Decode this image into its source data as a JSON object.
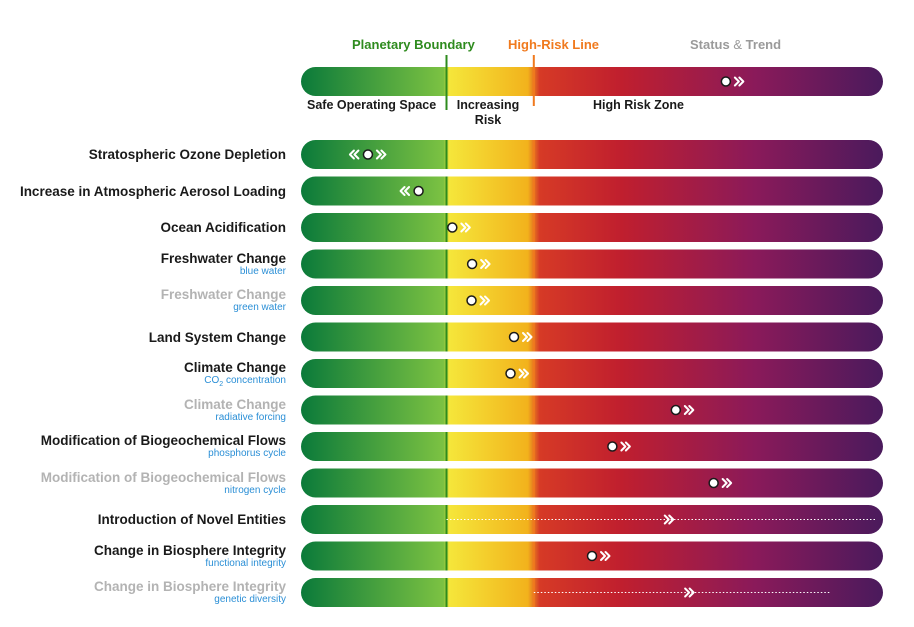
{
  "header": {
    "planetary_boundary": "Planetary Boundary",
    "high_risk_line": "High-Risk Line",
    "status": "Status",
    "amp": "&",
    "trend": "Trend"
  },
  "zones": {
    "safe": "Safe Operating Space",
    "increasing_1": "Increasing",
    "increasing_2": "Risk",
    "high": "High Risk Zone"
  },
  "colors": {
    "boundary_line": "#2e8b1e",
    "high_risk_line": "#f07a1e",
    "gradient": [
      "#0b7a3a",
      "#7cc242",
      "#f5e63a",
      "#f2b21c",
      "#d63a26",
      "#c01f2e",
      "#8a1a5a",
      "#4a1a5c"
    ],
    "subtitle": "#2b8fd6",
    "faded_text": "#b3b3b3"
  },
  "legend_example": {
    "status": 0.73,
    "trend": "worsening"
  },
  "chart_data": {
    "type": "status-bar",
    "scale": "0 = left edge, 1 = right edge; boundary at 0.25, high-risk at 0.40",
    "thresholds": {
      "planetary_boundary": 0.25,
      "high_risk": 0.4
    },
    "rows": [
      {
        "title": "Stratospheric Ozone Depletion",
        "subtitle": "",
        "faded": false,
        "status": 0.115,
        "trend": "improving-both"
      },
      {
        "title": "Increase in Atmospheric Aerosol Loading",
        "subtitle": "",
        "faded": false,
        "status": 0.202,
        "trend": "improving"
      },
      {
        "title": "Ocean Acidification",
        "subtitle": "",
        "faded": false,
        "status": 0.26,
        "trend": "worsening"
      },
      {
        "title": "Freshwater Change",
        "subtitle": "blue water",
        "faded": false,
        "status": 0.294,
        "trend": "worsening"
      },
      {
        "title": "Freshwater Change",
        "subtitle": "green water",
        "faded": true,
        "status": 0.293,
        "trend": "worsening"
      },
      {
        "title": "Land System Change",
        "subtitle": "",
        "faded": false,
        "status": 0.366,
        "trend": "worsening"
      },
      {
        "title": "Climate Change",
        "subtitle": "CO",
        "subtitle_sub": "2",
        "subtitle_rest": " concentration",
        "faded": false,
        "status": 0.36,
        "trend": "worsening"
      },
      {
        "title": "Climate Change",
        "subtitle": "radiative forcing",
        "faded": true,
        "status": 0.644,
        "trend": "worsening"
      },
      {
        "title": "Modification of Biogeochemical Flows",
        "subtitle": "phosphorus cycle",
        "faded": false,
        "status": 0.535,
        "trend": "worsening"
      },
      {
        "title": "Modification of Biogeochemical Flows",
        "subtitle": "nitrogen cycle",
        "faded": true,
        "status": 0.709,
        "trend": "worsening"
      },
      {
        "title": "Introduction of Novel Entities",
        "subtitle": "",
        "faded": false,
        "status": null,
        "trend": "worsening",
        "trend_pos": 0.625,
        "dotted": [
          0.25,
          1.0
        ]
      },
      {
        "title": "Change in Biosphere Integrity",
        "subtitle": "functional integrity",
        "faded": false,
        "status": 0.5,
        "trend": "worsening"
      },
      {
        "title": "Change in Biosphere Integrity",
        "subtitle": "genetic diversity",
        "faded": true,
        "status": null,
        "trend": "worsening",
        "trend_pos": 0.66,
        "dotted": [
          0.4,
          0.92
        ]
      }
    ]
  }
}
